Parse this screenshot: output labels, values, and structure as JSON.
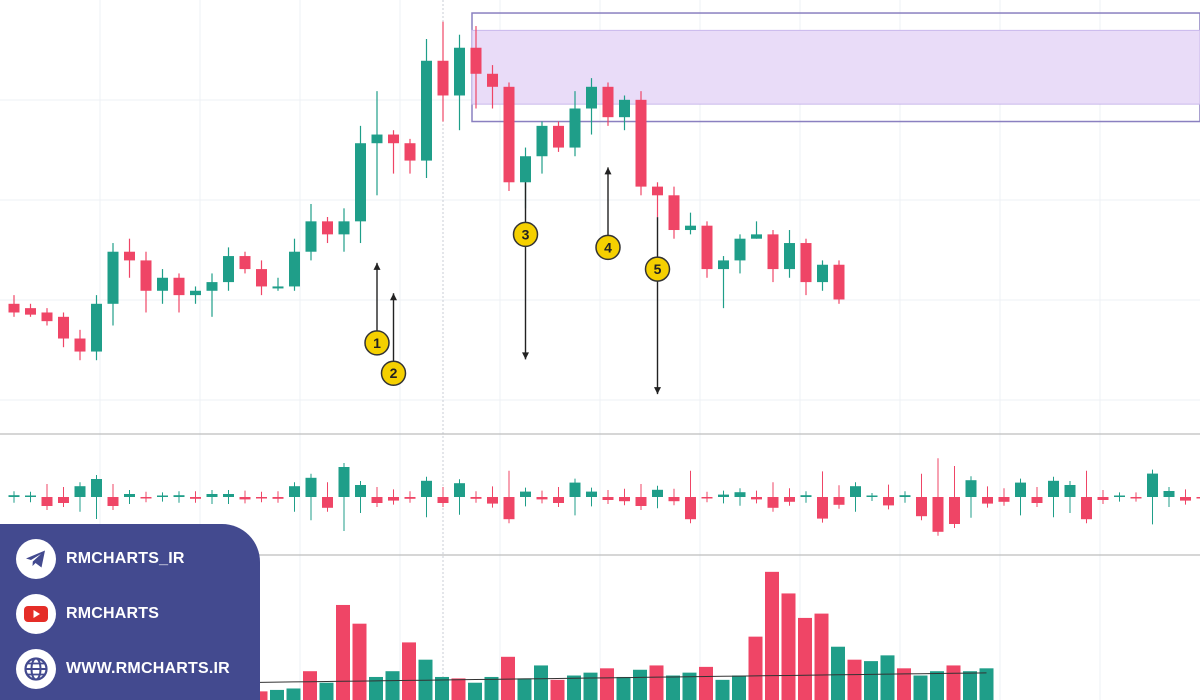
{
  "colors": {
    "up": "#1f9e89",
    "down": "#ef4566",
    "zone_fill": "#e9dcf8",
    "zone_border": "#8a80c0",
    "grid": "#eef0f4",
    "separator": "#bdbdbd",
    "marker": "#f5d000",
    "arrow": "#222222",
    "panel": "#434a8f"
  },
  "links": [
    {
      "icon": "telegram-icon",
      "text": "RMCHARTS_IR"
    },
    {
      "icon": "youtube-icon",
      "text": "RMCHARTS"
    },
    {
      "icon": "globe-icon",
      "text": "WWW.RMCHARTS.IR"
    }
  ],
  "chart_data": {
    "type": "candlestick",
    "price_y_range": [
      0,
      100
    ],
    "candles": [
      [
        30,
        28,
        32,
        27
      ],
      [
        29,
        27.5,
        30,
        27
      ],
      [
        28,
        26,
        29,
        25
      ],
      [
        27,
        22,
        28,
        20
      ],
      [
        22,
        19,
        24,
        17
      ],
      [
        19,
        30,
        32,
        17
      ],
      [
        30,
        42,
        44,
        25
      ],
      [
        42,
        40,
        45,
        36
      ],
      [
        40,
        33,
        42,
        28
      ],
      [
        33,
        36,
        38,
        30
      ],
      [
        36,
        32,
        37,
        28
      ],
      [
        32,
        33,
        34,
        30
      ],
      [
        33,
        35,
        37,
        27
      ],
      [
        35,
        41,
        43,
        33
      ],
      [
        41,
        38,
        42,
        37
      ],
      [
        38,
        34,
        40,
        32
      ],
      [
        34,
        34,
        36,
        33
      ],
      [
        34,
        42,
        45,
        33
      ],
      [
        42,
        49,
        53,
        40
      ],
      [
        49,
        46,
        50,
        44
      ],
      [
        46,
        49,
        52,
        42
      ],
      [
        49,
        67,
        71,
        44
      ],
      [
        67,
        69,
        79,
        55
      ],
      [
        69,
        67,
        70,
        60
      ],
      [
        67,
        63,
        68,
        60
      ],
      [
        63,
        86,
        91,
        59
      ],
      [
        86,
        78,
        95,
        72
      ],
      [
        78,
        89,
        92,
        70
      ],
      [
        89,
        83,
        94,
        75
      ],
      [
        83,
        80,
        85,
        75
      ],
      [
        80,
        58,
        81,
        56
      ],
      [
        58,
        64,
        66,
        52
      ],
      [
        64,
        71,
        72,
        60
      ],
      [
        71,
        66,
        72,
        65
      ],
      [
        66,
        75,
        79,
        64
      ],
      [
        75,
        80,
        82,
        69
      ],
      [
        80,
        73,
        81,
        71
      ],
      [
        73,
        77,
        78,
        70
      ],
      [
        77,
        57,
        79,
        55
      ],
      [
        57,
        55,
        58,
        50
      ],
      [
        55,
        47,
        57,
        45
      ],
      [
        47,
        48,
        51,
        46
      ],
      [
        48,
        38,
        49,
        36
      ],
      [
        38,
        40,
        41,
        29
      ],
      [
        40,
        45,
        46,
        37
      ],
      [
        45,
        46,
        49,
        45
      ],
      [
        46,
        38,
        47,
        35
      ],
      [
        38,
        44,
        47,
        36
      ],
      [
        44,
        35,
        45,
        32
      ],
      [
        35,
        39,
        40,
        33
      ],
      [
        39,
        31,
        40,
        30
      ]
    ],
    "oscillator": {
      "y_range": [
        -10,
        10
      ],
      "values": [
        0.3,
        0.2,
        -1.5,
        -1,
        1.8,
        3,
        -1.5,
        0.5,
        -0.2,
        0.1,
        0.3,
        -0.3,
        0.5,
        0.5,
        -0.4,
        -0.2,
        -0.3,
        1.8,
        3.2,
        -1.8,
        5,
        2,
        -1,
        -0.6,
        -0.3,
        2.7,
        -1,
        2.3,
        -0.3,
        -1.1,
        -3.7,
        0.9,
        -0.4,
        -1,
        2.4,
        0.9,
        -0.5,
        -0.7,
        -1.5,
        1.2,
        -0.7,
        -3.7,
        -0.2,
        0.4,
        0.8,
        -0.4,
        -1.8,
        -0.8,
        0.3,
        -3.6,
        -1.3,
        1.8,
        0,
        -1.4,
        0.3,
        -3.2,
        -5.8,
        -4.5,
        2.8,
        -1.1,
        -0.8,
        2.4,
        -1,
        2.7,
        2,
        -3.7,
        -0.5,
        0.1,
        -0.1,
        3.9,
        1,
        -0.6,
        -0.2,
        0.1,
        -0.5,
        0.3
      ]
    },
    "volume": {
      "y_range": [
        0,
        100
      ],
      "values": [
        8,
        7,
        10,
        12,
        13,
        9,
        6,
        8,
        10,
        6,
        4,
        5,
        7,
        9,
        4,
        6,
        7,
        8,
        20,
        12,
        66,
        53,
        16,
        20,
        40,
        28,
        16,
        15,
        12,
        16,
        30,
        15,
        24,
        14,
        17,
        19,
        22,
        16,
        21,
        24,
        17,
        19,
        23,
        14,
        17,
        44,
        89,
        74,
        57,
        60,
        37,
        28,
        27,
        31,
        22,
        17,
        20,
        24,
        20,
        22
      ]
    },
    "resistance_zone": {
      "outer_top": 97,
      "outer_bottom": 72,
      "inner_top": 93,
      "inner_bottom": 76,
      "start_index": 28
    },
    "support_line": 0,
    "markers": [
      {
        "label": "1",
        "index": 22,
        "value": 21,
        "arrow": "up"
      },
      {
        "label": "2",
        "index": 23,
        "value": 14,
        "arrow": "up"
      },
      {
        "label": "3",
        "index": 31,
        "value": 46,
        "arrow": "down"
      },
      {
        "label": "4",
        "index": 36,
        "value": 43,
        "arrow": "up"
      },
      {
        "label": "5",
        "index": 39,
        "value": 38,
        "arrow": "down"
      }
    ]
  }
}
